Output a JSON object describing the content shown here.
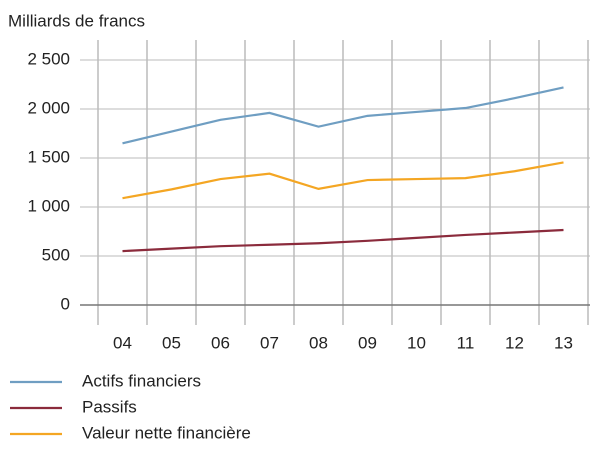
{
  "chart_data": {
    "type": "line",
    "y_label": "Milliards de francs",
    "categories": [
      "04",
      "05",
      "06",
      "07",
      "08",
      "09",
      "10",
      "11",
      "12",
      "13"
    ],
    "series": [
      {
        "name": "Actifs financiers",
        "color": "#6f9ec2",
        "values": [
          1650,
          1770,
          1890,
          1960,
          1820,
          1930,
          1970,
          2010,
          2110,
          2220
        ]
      },
      {
        "name": "Passifs",
        "color": "#8b2b3c",
        "values": [
          550,
          575,
          600,
          615,
          630,
          655,
          685,
          715,
          740,
          765
        ]
      },
      {
        "name": "Valeur nette financière",
        "color": "#f4a623",
        "values": [
          1090,
          1180,
          1285,
          1340,
          1185,
          1275,
          1285,
          1295,
          1365,
          1455
        ]
      }
    ],
    "ylim": [
      0,
      2500
    ],
    "yticks": [
      0,
      500,
      {
        "value": 1000,
        "label": "1 000"
      },
      {
        "value": 1500,
        "label": "1 500"
      },
      {
        "value": 2000,
        "label": "2 000"
      },
      {
        "value": 2500,
        "label": "2 500"
      }
    ],
    "grid": true,
    "legend": "bottom"
  }
}
